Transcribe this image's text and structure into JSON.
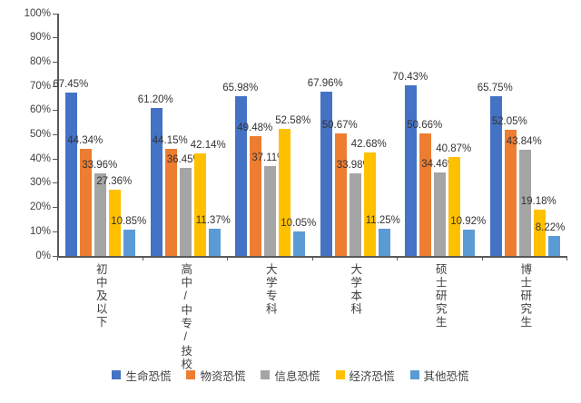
{
  "chart_data": {
    "type": "bar",
    "title": "",
    "categories": [
      "初中及以下",
      "高中/中专/技校",
      "大学专科",
      "大学本科",
      "硕士研究生",
      "博士研究生"
    ],
    "series": [
      {
        "name": "生命恐慌",
        "color": "#4472C4",
        "values": [
          67.45,
          61.2,
          65.98,
          67.96,
          70.43,
          65.75
        ]
      },
      {
        "name": "物资恐慌",
        "color": "#ED7D31",
        "values": [
          44.34,
          44.15,
          49.48,
          50.67,
          50.66,
          52.05
        ]
      },
      {
        "name": "信息恐慌",
        "color": "#A5A5A5",
        "values": [
          33.96,
          36.45,
          37.11,
          33.98,
          34.46,
          43.84
        ]
      },
      {
        "name": "经济恐慌",
        "color": "#FFC000",
        "values": [
          27.36,
          42.14,
          52.58,
          42.68,
          40.87,
          19.18
        ]
      },
      {
        "name": "其他恐慌",
        "color": "#5B9BD5",
        "values": [
          10.85,
          11.37,
          10.05,
          11.25,
          10.92,
          8.22
        ]
      }
    ],
    "ylim": [
      0,
      100
    ],
    "y_tick_labels": [
      "0%",
      "10%",
      "20%",
      "30%",
      "40%",
      "50%",
      "60%",
      "70%",
      "80%",
      "90%",
      "100%"
    ],
    "grid": false,
    "data_labels": true,
    "label_format": "0.00%",
    "legend_position": "bottom"
  },
  "colors": {
    "background": "#FFFFFF",
    "axis": "#595959",
    "text": "#404040"
  }
}
